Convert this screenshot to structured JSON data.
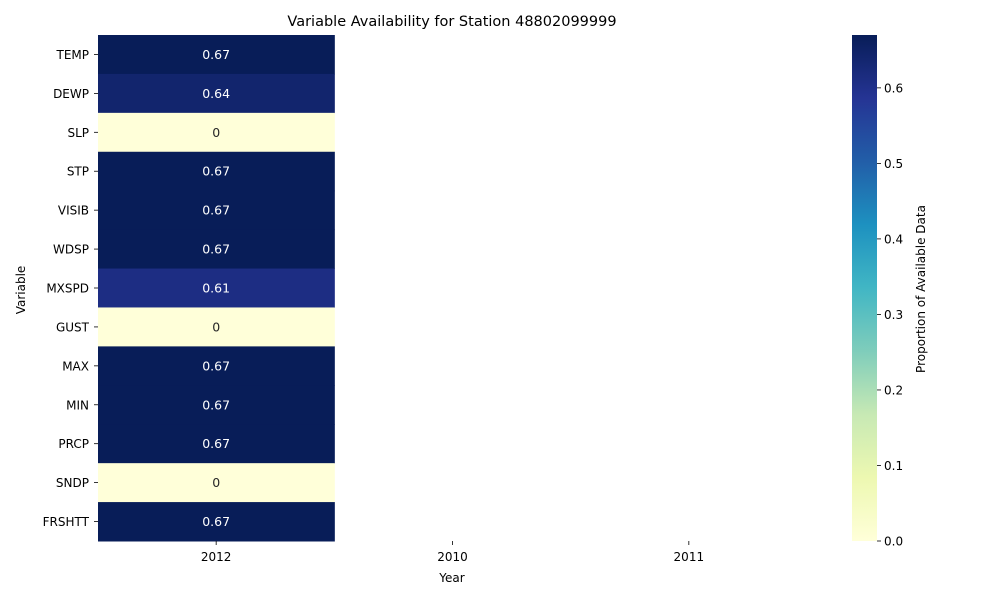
{
  "chart_data": {
    "type": "heatmap",
    "title": "Variable Availability for Station 48802099999",
    "xlabel": "Year",
    "ylabel": "Variable",
    "colorbar_label": "Proportion of Available Data",
    "colormap": "YlGnBu",
    "x": [
      "2012",
      "2010",
      "2011"
    ],
    "y": [
      "TEMP",
      "DEWP",
      "SLP",
      "STP",
      "VISIB",
      "WDSP",
      "MXSPD",
      "GUST",
      "MAX",
      "MIN",
      "PRCP",
      "SNDP",
      "FRSHTT"
    ],
    "values": [
      [
        0.67,
        null,
        null
      ],
      [
        0.64,
        null,
        null
      ],
      [
        0,
        null,
        null
      ],
      [
        0.67,
        null,
        null
      ],
      [
        0.67,
        null,
        null
      ],
      [
        0.67,
        null,
        null
      ],
      [
        0.61,
        null,
        null
      ],
      [
        0,
        null,
        null
      ],
      [
        0.67,
        null,
        null
      ],
      [
        0.67,
        null,
        null
      ],
      [
        0.67,
        null,
        null
      ],
      [
        0,
        null,
        null
      ],
      [
        0.67,
        null,
        null
      ]
    ],
    "colorbar_range": [
      0,
      0.67
    ],
    "colorbar_ticks": [
      "0.0",
      "0.1",
      "0.2",
      "0.3",
      "0.4",
      "0.5",
      "0.6"
    ],
    "colors": {
      "high": "#081d58",
      "low": "#ffffd9",
      "label_dark_text": "#262626",
      "label_light_text": "#ffffff"
    }
  }
}
